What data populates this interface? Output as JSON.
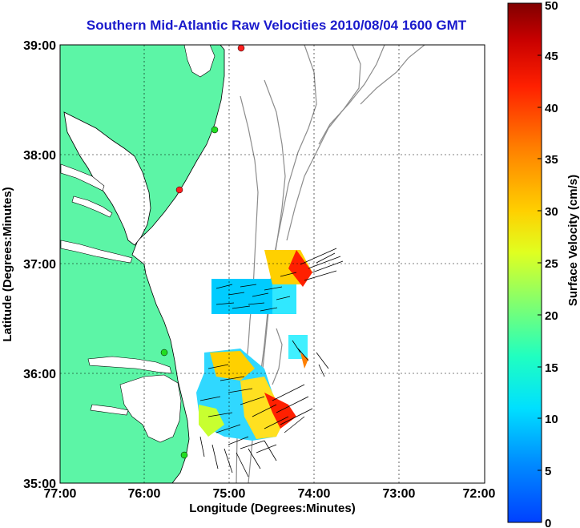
{
  "title": "Southern Mid-Atlantic Raw Velocities 2010/08/04 1600 GMT",
  "map": {
    "x_axis_label": "Longitude (Degrees:Minutes)",
    "y_axis_label": "Latitude (Degrees:Minutes)",
    "lon_ticks": [
      "77:00",
      "76:00",
      "75:00",
      "74:00",
      "73:00",
      "72:00"
    ],
    "lat_ticks": [
      "39:00",
      "38:00",
      "37:00",
      "36:00",
      "35:00"
    ],
    "lon_range": [
      -77,
      -72
    ],
    "lat_range": [
      35,
      39
    ],
    "grid": "dotted",
    "land_color": "#5cf5a6",
    "bathymetry_color": "#8c8c8c",
    "coastline_color": "#000000",
    "stations": [
      {
        "lon": -74.83,
        "lat": 38.96,
        "color": "#ff2020"
      },
      {
        "lon": -75.15,
        "lat": 38.22,
        "color": "#22dd22"
      },
      {
        "lon": -75.48,
        "lat": 37.68,
        "color": "#ff2020"
      },
      {
        "lon": -75.72,
        "lat": 36.18,
        "color": "#22dd22"
      },
      {
        "lon": -75.48,
        "lat": 35.27,
        "color": "#22dd22"
      }
    ]
  },
  "colorbar": {
    "label": "Surface Velocity (cm/s)",
    "ticks": [
      "0",
      "5",
      "10",
      "15",
      "20",
      "25",
      "30",
      "35",
      "40",
      "45",
      "50"
    ],
    "min": 0,
    "max": 50,
    "colors": [
      "#0040ff",
      "#00c8ff",
      "#00ffd0",
      "#40ff90",
      "#c8ff30",
      "#ffd000",
      "#ff8000",
      "#ff2000",
      "#c80000",
      "#800000"
    ]
  }
}
